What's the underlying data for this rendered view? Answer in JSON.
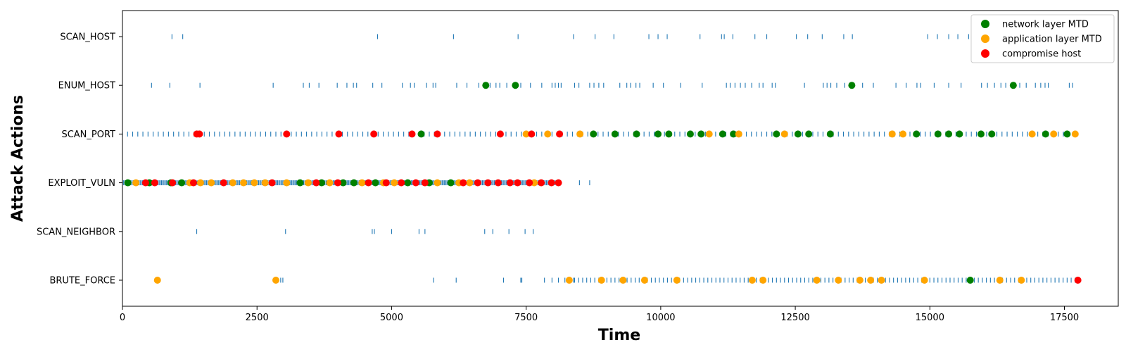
{
  "chart_data": {
    "type": "scatter",
    "title": "",
    "xlabel": "Time",
    "ylabel": "Attack Actions",
    "xlim": [
      0,
      18500
    ],
    "x_ticks": [
      0,
      2500,
      5000,
      7500,
      10000,
      12500,
      15000,
      17500
    ],
    "categories": [
      "SCAN_HOST",
      "ENUM_HOST",
      "SCAN_PORT",
      "EXPLOIT_VULN",
      "SCAN_NEIGHBOR",
      "BRUTE_FORCE"
    ],
    "grid": false,
    "legend_position": "top-right",
    "action_events": [
      {
        "action": "SCAN_HOST",
        "times": [
          920,
          1120,
          4740,
          6150,
          7350,
          8380,
          8780,
          9130,
          9780,
          9950,
          10120,
          10730,
          11130,
          11180,
          11340,
          11750,
          11970,
          12520,
          12730,
          13000,
          13400,
          13560,
          14960,
          15140,
          15350,
          15520,
          15720
        ]
      },
      {
        "action": "ENUM_HOST",
        "times": [
          540,
          880,
          1440,
          2800,
          3360,
          3470,
          3650,
          3990,
          4170,
          4290,
          4350,
          4650,
          4820,
          5200,
          5350,
          5420,
          5650,
          5770,
          5820,
          6210,
          6400,
          6620,
          6830,
          6940,
          7010,
          7140,
          7400,
          7580,
          7790,
          7980,
          8040,
          8100,
          8150,
          8400,
          8480,
          8680,
          8760,
          8850,
          8940,
          9240,
          9370,
          9440,
          9540,
          9610,
          9860,
          10050,
          10370,
          10770,
          11220,
          11290,
          11380,
          11480,
          11570,
          11690,
          11830,
          11900,
          12070,
          12130,
          12670,
          13020,
          13090,
          13160,
          13270,
          13420,
          13590,
          13750,
          13950,
          14370,
          14560,
          14760,
          14830,
          15080,
          15350,
          15580,
          15960,
          16070,
          16200,
          16320,
          16410,
          16580,
          16670,
          16790,
          16960,
          17060,
          17140,
          17200,
          17590,
          17650
        ]
      },
      {
        "action": "SCAN_PORT",
        "scan_range": [
          0,
          17700
        ],
        "spacing": 95
      },
      {
        "action": "EXPLOIT_VULN",
        "dense_range": [
          0,
          8150
        ],
        "spacing": 22,
        "times": [
          8490,
          8680
        ]
      },
      {
        "action": "SCAN_NEIGHBOR",
        "times": [
          1380,
          3030,
          4640,
          4680,
          5000,
          5510,
          5620,
          6730,
          6880,
          7180,
          7480,
          7630
        ]
      },
      {
        "action": "BRUTE_FORCE",
        "times": [
          2940,
          2980,
          5780,
          6200,
          7080,
          7400,
          7420,
          7840,
          7980,
          8100,
          8220,
          8300,
          8380
        ],
        "scan_range": [
          8400,
          17700
        ],
        "spacing": 75
      }
    ],
    "series": [
      {
        "name": "network layer MTD",
        "color": "#008000",
        "points": [
          {
            "x": 100,
            "y": "EXPLOIT_VULN"
          },
          {
            "x": 500,
            "y": "EXPLOIT_VULN"
          },
          {
            "x": 900,
            "y": "EXPLOIT_VULN"
          },
          {
            "x": 1100,
            "y": "EXPLOIT_VULN"
          },
          {
            "x": 3300,
            "y": "EXPLOIT_VULN"
          },
          {
            "x": 3700,
            "y": "EXPLOIT_VULN"
          },
          {
            "x": 4100,
            "y": "EXPLOIT_VULN"
          },
          {
            "x": 4300,
            "y": "EXPLOIT_VULN"
          },
          {
            "x": 4700,
            "y": "EXPLOIT_VULN"
          },
          {
            "x": 5300,
            "y": "EXPLOIT_VULN"
          },
          {
            "x": 5700,
            "y": "EXPLOIT_VULN"
          },
          {
            "x": 6100,
            "y": "EXPLOIT_VULN"
          },
          {
            "x": 6750,
            "y": "ENUM_HOST"
          },
          {
            "x": 7300,
            "y": "ENUM_HOST"
          },
          {
            "x": 13550,
            "y": "ENUM_HOST"
          },
          {
            "x": 16550,
            "y": "ENUM_HOST"
          },
          {
            "x": 5550,
            "y": "SCAN_PORT"
          },
          {
            "x": 8750,
            "y": "SCAN_PORT"
          },
          {
            "x": 9150,
            "y": "SCAN_PORT"
          },
          {
            "x": 9550,
            "y": "SCAN_PORT"
          },
          {
            "x": 9950,
            "y": "SCAN_PORT"
          },
          {
            "x": 10150,
            "y": "SCAN_PORT"
          },
          {
            "x": 10550,
            "y": "SCAN_PORT"
          },
          {
            "x": 10750,
            "y": "SCAN_PORT"
          },
          {
            "x": 11150,
            "y": "SCAN_PORT"
          },
          {
            "x": 11350,
            "y": "SCAN_PORT"
          },
          {
            "x": 12150,
            "y": "SCAN_PORT"
          },
          {
            "x": 12550,
            "y": "SCAN_PORT"
          },
          {
            "x": 12750,
            "y": "SCAN_PORT"
          },
          {
            "x": 13150,
            "y": "SCAN_PORT"
          },
          {
            "x": 14750,
            "y": "SCAN_PORT"
          },
          {
            "x": 15150,
            "y": "SCAN_PORT"
          },
          {
            "x": 15350,
            "y": "SCAN_PORT"
          },
          {
            "x": 15550,
            "y": "SCAN_PORT"
          },
          {
            "x": 15950,
            "y": "SCAN_PORT"
          },
          {
            "x": 16150,
            "y": "SCAN_PORT"
          },
          {
            "x": 17150,
            "y": "SCAN_PORT"
          },
          {
            "x": 17550,
            "y": "SCAN_PORT"
          },
          {
            "x": 15750,
            "y": "BRUTE_FORCE"
          }
        ]
      },
      {
        "name": "application layer MTD",
        "color": "#FFA500",
        "points": [
          {
            "x": 250,
            "y": "EXPLOIT_VULN"
          },
          {
            "x": 1250,
            "y": "EXPLOIT_VULN"
          },
          {
            "x": 1450,
            "y": "EXPLOIT_VULN"
          },
          {
            "x": 1650,
            "y": "EXPLOIT_VULN"
          },
          {
            "x": 2050,
            "y": "EXPLOIT_VULN"
          },
          {
            "x": 2250,
            "y": "EXPLOIT_VULN"
          },
          {
            "x": 2450,
            "y": "EXPLOIT_VULN"
          },
          {
            "x": 2650,
            "y": "EXPLOIT_VULN"
          },
          {
            "x": 3050,
            "y": "EXPLOIT_VULN"
          },
          {
            "x": 3450,
            "y": "EXPLOIT_VULN"
          },
          {
            "x": 3850,
            "y": "EXPLOIT_VULN"
          },
          {
            "x": 4450,
            "y": "EXPLOIT_VULN"
          },
          {
            "x": 4850,
            "y": "EXPLOIT_VULN"
          },
          {
            "x": 5050,
            "y": "EXPLOIT_VULN"
          },
          {
            "x": 5850,
            "y": "EXPLOIT_VULN"
          },
          {
            "x": 6250,
            "y": "EXPLOIT_VULN"
          },
          {
            "x": 6450,
            "y": "EXPLOIT_VULN"
          },
          {
            "x": 7650,
            "y": "EXPLOIT_VULN"
          },
          {
            "x": 7500,
            "y": "SCAN_PORT"
          },
          {
            "x": 7900,
            "y": "SCAN_PORT"
          },
          {
            "x": 8500,
            "y": "SCAN_PORT"
          },
          {
            "x": 10900,
            "y": "SCAN_PORT"
          },
          {
            "x": 11450,
            "y": "SCAN_PORT"
          },
          {
            "x": 12300,
            "y": "SCAN_PORT"
          },
          {
            "x": 14300,
            "y": "SCAN_PORT"
          },
          {
            "x": 14500,
            "y": "SCAN_PORT"
          },
          {
            "x": 16900,
            "y": "SCAN_PORT"
          },
          {
            "x": 17300,
            "y": "SCAN_PORT"
          },
          {
            "x": 17700,
            "y": "SCAN_PORT"
          },
          {
            "x": 650,
            "y": "BRUTE_FORCE"
          },
          {
            "x": 2850,
            "y": "BRUTE_FORCE"
          },
          {
            "x": 8300,
            "y": "BRUTE_FORCE"
          },
          {
            "x": 8900,
            "y": "BRUTE_FORCE"
          },
          {
            "x": 9300,
            "y": "BRUTE_FORCE"
          },
          {
            "x": 9700,
            "y": "BRUTE_FORCE"
          },
          {
            "x": 10300,
            "y": "BRUTE_FORCE"
          },
          {
            "x": 11700,
            "y": "BRUTE_FORCE"
          },
          {
            "x": 11900,
            "y": "BRUTE_FORCE"
          },
          {
            "x": 12900,
            "y": "BRUTE_FORCE"
          },
          {
            "x": 13300,
            "y": "BRUTE_FORCE"
          },
          {
            "x": 13700,
            "y": "BRUTE_FORCE"
          },
          {
            "x": 13900,
            "y": "BRUTE_FORCE"
          },
          {
            "x": 14100,
            "y": "BRUTE_FORCE"
          },
          {
            "x": 14900,
            "y": "BRUTE_FORCE"
          },
          {
            "x": 16300,
            "y": "BRUTE_FORCE"
          },
          {
            "x": 16700,
            "y": "BRUTE_FORCE"
          }
        ]
      },
      {
        "name": "compromise host",
        "color": "#FF0000",
        "points": [
          {
            "x": 1380,
            "y": "SCAN_PORT"
          },
          {
            "x": 1430,
            "y": "SCAN_PORT"
          },
          {
            "x": 3050,
            "y": "SCAN_PORT"
          },
          {
            "x": 4020,
            "y": "SCAN_PORT"
          },
          {
            "x": 4670,
            "y": "SCAN_PORT"
          },
          {
            "x": 5380,
            "y": "SCAN_PORT"
          },
          {
            "x": 5850,
            "y": "SCAN_PORT"
          },
          {
            "x": 7020,
            "y": "SCAN_PORT"
          },
          {
            "x": 7600,
            "y": "SCAN_PORT"
          },
          {
            "x": 8120,
            "y": "SCAN_PORT"
          },
          {
            "x": 430,
            "y": "EXPLOIT_VULN"
          },
          {
            "x": 600,
            "y": "EXPLOIT_VULN"
          },
          {
            "x": 930,
            "y": "EXPLOIT_VULN"
          },
          {
            "x": 1320,
            "y": "EXPLOIT_VULN"
          },
          {
            "x": 1880,
            "y": "EXPLOIT_VULN"
          },
          {
            "x": 2780,
            "y": "EXPLOIT_VULN"
          },
          {
            "x": 3600,
            "y": "EXPLOIT_VULN"
          },
          {
            "x": 4000,
            "y": "EXPLOIT_VULN"
          },
          {
            "x": 4570,
            "y": "EXPLOIT_VULN"
          },
          {
            "x": 4900,
            "y": "EXPLOIT_VULN"
          },
          {
            "x": 5180,
            "y": "EXPLOIT_VULN"
          },
          {
            "x": 5450,
            "y": "EXPLOIT_VULN"
          },
          {
            "x": 5620,
            "y": "EXPLOIT_VULN"
          },
          {
            "x": 6330,
            "y": "EXPLOIT_VULN"
          },
          {
            "x": 6600,
            "y": "EXPLOIT_VULN"
          },
          {
            "x": 6790,
            "y": "EXPLOIT_VULN"
          },
          {
            "x": 6980,
            "y": "EXPLOIT_VULN"
          },
          {
            "x": 7200,
            "y": "EXPLOIT_VULN"
          },
          {
            "x": 7340,
            "y": "EXPLOIT_VULN"
          },
          {
            "x": 7560,
            "y": "EXPLOIT_VULN"
          },
          {
            "x": 7780,
            "y": "EXPLOIT_VULN"
          },
          {
            "x": 7970,
            "y": "EXPLOIT_VULN"
          },
          {
            "x": 8100,
            "y": "EXPLOIT_VULN"
          },
          {
            "x": 17750,
            "y": "BRUTE_FORCE"
          }
        ]
      }
    ]
  }
}
